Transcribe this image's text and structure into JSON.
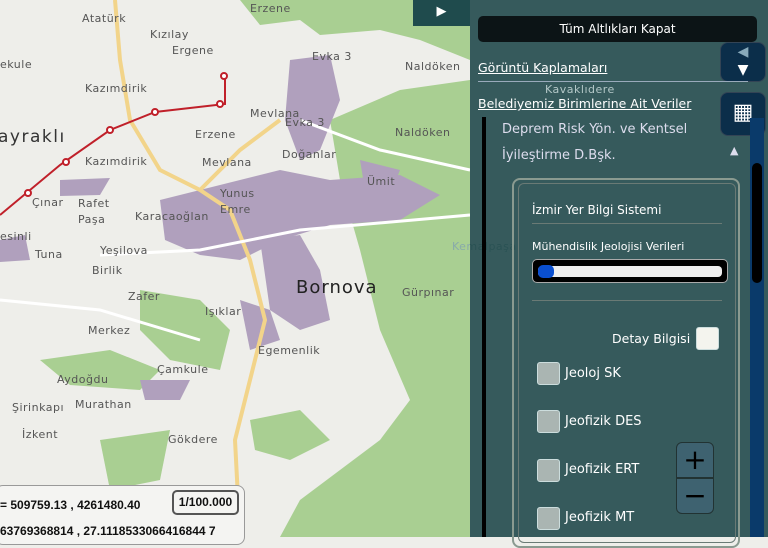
{
  "map": {
    "labels": [
      "Atatürk",
      "Kızılay",
      "Ergene",
      "Erzene",
      "ekule",
      "Kazımdirik",
      "ayraklı",
      "Erzene",
      "Mevlana",
      "Evka 3",
      "Evka 3",
      "Naldöken",
      "Naldöken",
      "Kazımdirik",
      "Doğanlar",
      "Mevlana",
      "Ümit",
      "Çınar",
      "Rafet Paşa",
      "Yunus Emre",
      "Karacaoğlan",
      "esinli",
      "Yeşilova",
      "Tuna",
      "Birlik",
      "Bornova",
      "Gürpınar",
      "Zafer",
      "Işıklar",
      "Merkez",
      "Egemenlik",
      "Çamkule",
      "Aydoğdu",
      "Murathan",
      "Şirinkapı",
      "İzkent",
      "Gökdere",
      "Kavaklıdere",
      "Kemalpaşa"
    ],
    "colors": {
      "background": "#eeeeea",
      "green": "#a9cf92",
      "purple": "#b0a0bd",
      "road": "#f2d48a",
      "rail": "#c0202a"
    }
  },
  "panel": {
    "toggle_icon": "play-right-icon",
    "close_all": "Tüm Altlıkları Kapat",
    "imagery_link": "Görüntü Kaplamaları",
    "municipal_link": "Belediyemiz Birimlerine Ait Veriler",
    "department_line1": "Deprem Risk Yön. ve Kentsel",
    "department_line2": "İyileştirme D.Bşk.",
    "system_title": "İzmir Yer Bilgi Sistemi",
    "layer_title": "Mühendislik Jeolojisi Verileri",
    "opacity_percent": 0,
    "detail_label": "Detay Bilgisi",
    "checkboxes": [
      {
        "label": "Jeoloj SK",
        "checked": false
      },
      {
        "label": "Jeofizik DES",
        "checked": false
      },
      {
        "label": "Jeofizik ERT",
        "checked": false
      },
      {
        "label": "Jeofizik MT",
        "checked": false
      }
    ],
    "zoom_in": "+",
    "zoom_out": "−"
  },
  "coords": {
    "projected": "= 509759.13 , 4261480.40",
    "geographic": "63769368814 , 27.1118533066416844 7",
    "scale": "1/100.000"
  }
}
